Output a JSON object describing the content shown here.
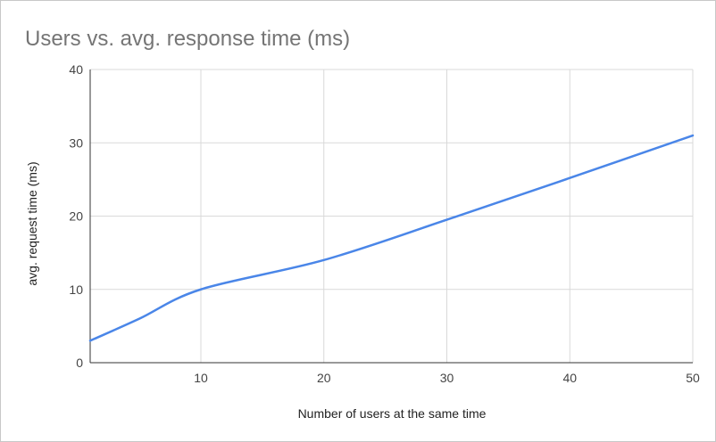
{
  "chart_data": {
    "type": "line",
    "title": "Users vs. avg. response time (ms)",
    "xlabel": "Number of users at the same time",
    "ylabel": "avg. request time (ms)",
    "xlim": [
      1,
      50
    ],
    "ylim": [
      0,
      40
    ],
    "x_ticks": [
      10,
      20,
      30,
      40,
      50
    ],
    "y_ticks": [
      0,
      10,
      20,
      30,
      40
    ],
    "grid": true,
    "legend": "none",
    "series": [
      {
        "color": "#4a86e8",
        "points": [
          {
            "x": 1,
            "y": 3
          },
          {
            "x": 5,
            "y": 6
          },
          {
            "x": 10,
            "y": 10
          },
          {
            "x": 20,
            "y": 14
          },
          {
            "x": 30,
            "y": 19.5
          },
          {
            "x": 40,
            "y": 25.2
          },
          {
            "x": 50,
            "y": 31
          }
        ]
      }
    ],
    "colors": {
      "grid": "#d9d9d9",
      "axis": "#333333"
    }
  }
}
